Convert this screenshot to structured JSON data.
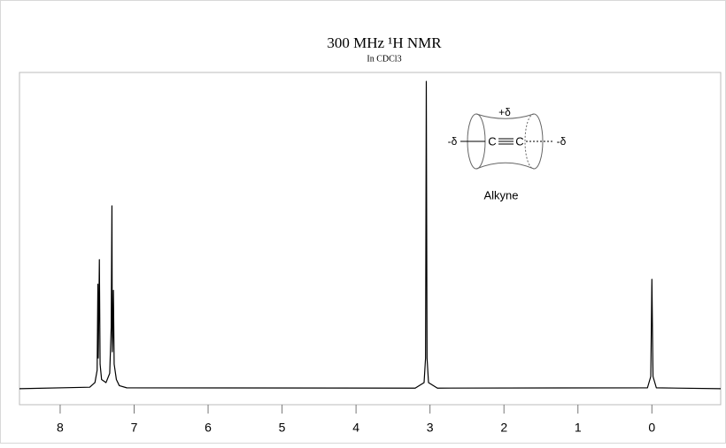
{
  "chart_data": {
    "type": "line",
    "title": "300 MHz ¹H NMR",
    "subtitle": "In CDCl3",
    "x": [
      8.55,
      7.6,
      7.53,
      7.5,
      7.49,
      7.485,
      7.475,
      7.47,
      7.46,
      7.44,
      7.38,
      7.33,
      7.31,
      7.3,
      7.295,
      7.285,
      7.28,
      7.27,
      7.24,
      7.2,
      7.1,
      3.2,
      3.08,
      3.06,
      3.05,
      3.04,
      3.02,
      2.9,
      0.06,
      0.015,
      0.0,
      -0.015,
      -0.06,
      -0.93
    ],
    "values": [
      0,
      0.5,
      2,
      6,
      34,
      10,
      30,
      42,
      8,
      3,
      2,
      5,
      20,
      59.5,
      12,
      20,
      32,
      8,
      3,
      1,
      0.3,
      0.2,
      2,
      10,
      100,
      10,
      2,
      0.2,
      0.3,
      4,
      35.6,
      4,
      0.3,
      0
    ],
    "color": "#000000",
    "xlim": [
      8.55,
      -0.93
    ],
    "xticks": [
      8,
      7,
      6,
      5,
      4,
      3,
      2,
      1,
      0
    ],
    "ylim": [
      -5.2,
      102.9
    ],
    "inset": {
      "charge_top": "+δ",
      "charge_left": "-δ",
      "charge_right": "-δ",
      "atom_left": "C",
      "atom_right": "C",
      "label": "Alkyne"
    }
  }
}
